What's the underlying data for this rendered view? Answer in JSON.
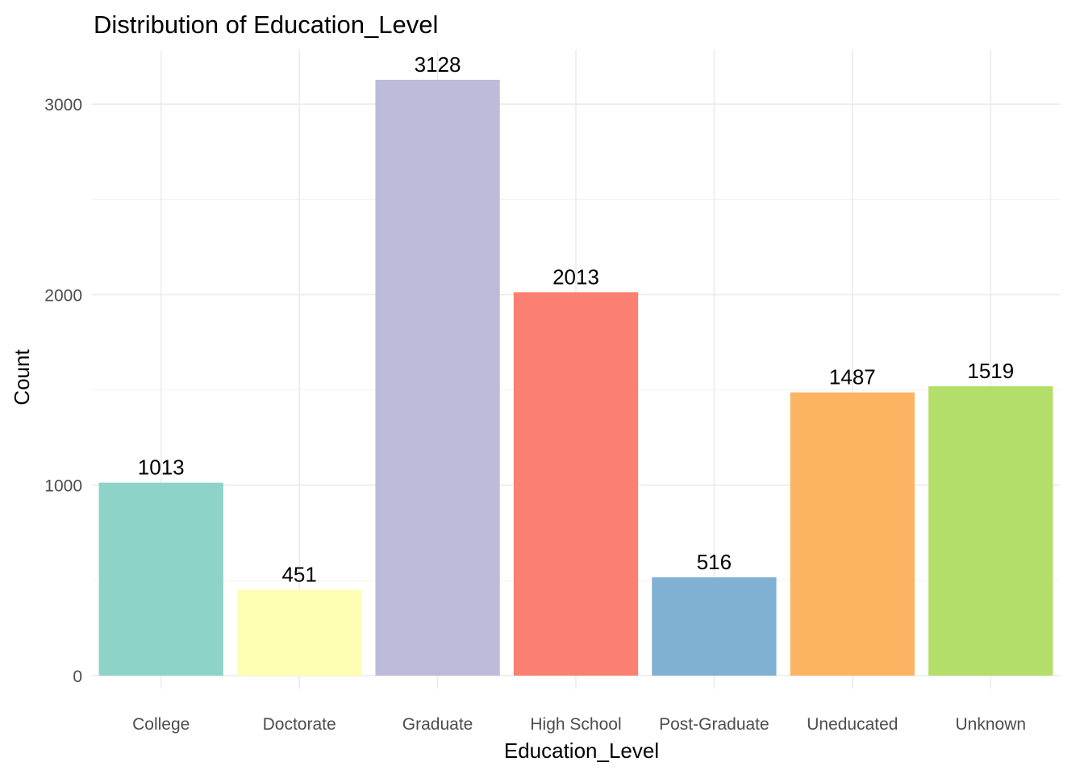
{
  "chart_data": {
    "type": "bar",
    "title": "Distribution of Education_Level",
    "xlabel": "Education_Level",
    "ylabel": "Count",
    "categories": [
      "College",
      "Doctorate",
      "Graduate",
      "High School",
      "Post-Graduate",
      "Uneducated",
      "Unknown"
    ],
    "values": [
      1013,
      451,
      3128,
      2013,
      516,
      1487,
      1519
    ],
    "data_labels": [
      "1013",
      "451",
      "3128",
      "2013",
      "516",
      "1487",
      "1519"
    ],
    "colors": [
      "#8dd3c7",
      "#ffffb3",
      "#bebada",
      "#fb8072",
      "#80b1d3",
      "#fdb462",
      "#b3de69"
    ],
    "yticks": [
      0,
      1000,
      2000,
      3000
    ],
    "ytick_labels": [
      "0",
      "1000",
      "2000",
      "3000"
    ],
    "yminor": [
      500,
      1500,
      2500
    ],
    "ylim": [
      0,
      3284.4
    ],
    "grid": true,
    "legend": "none"
  }
}
